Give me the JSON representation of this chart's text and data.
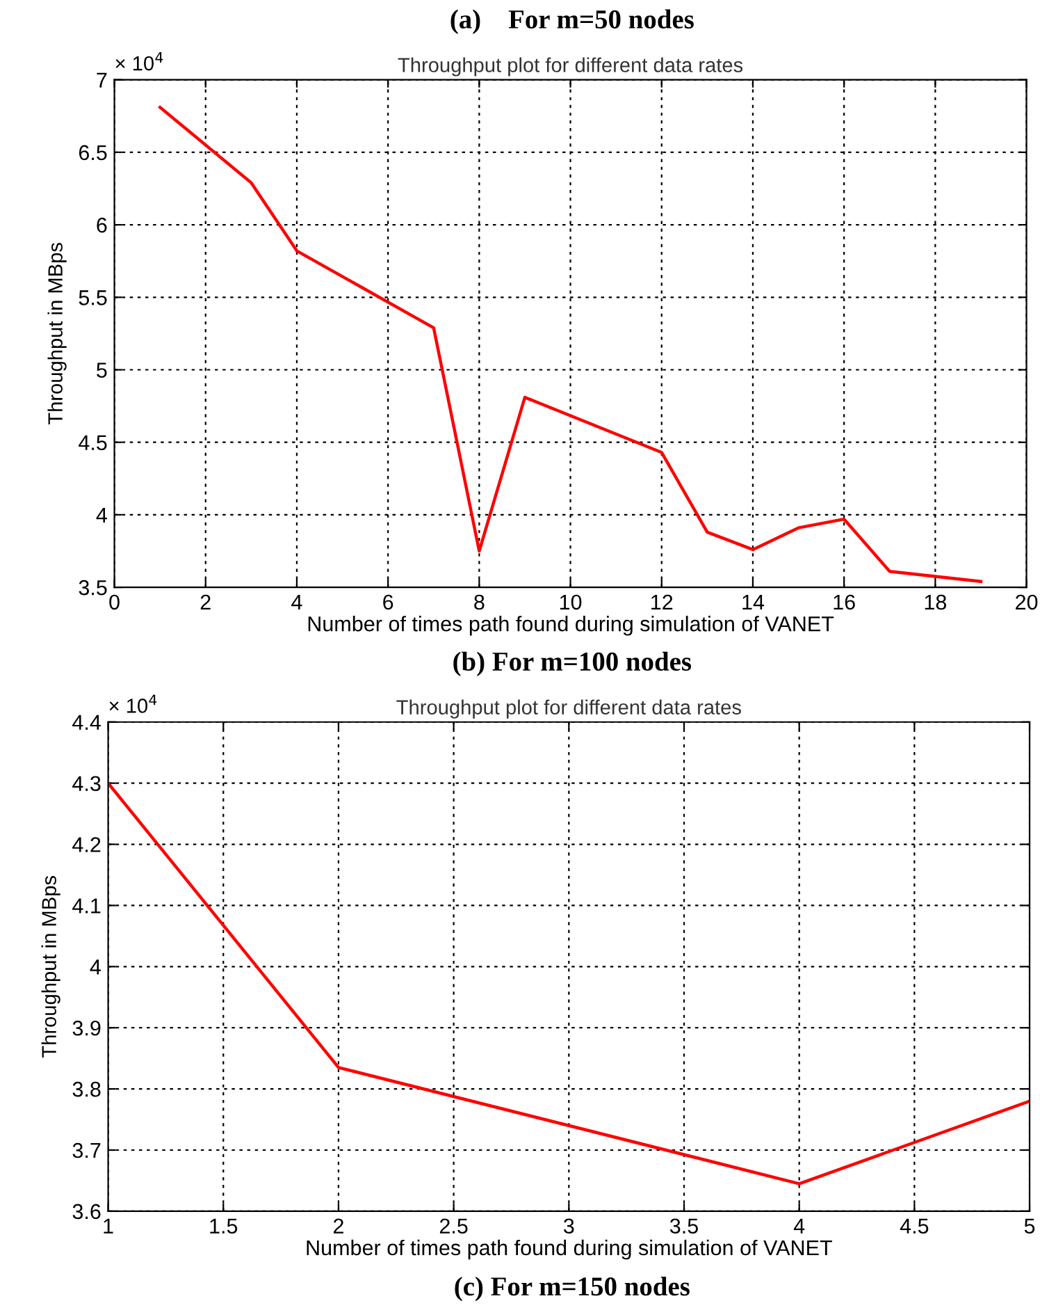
{
  "chart_data": [
    {
      "type": "line",
      "title": "Throughput plot for different data rates",
      "xlabel": "Number of times path found during simulation of VANET",
      "ylabel": "Throughput in MBps",
      "annotations": [
        "(a)    For m=50 nodes",
        "× 10$^{4}$"
      ],
      "x": [
        1,
        3,
        4,
        7,
        8,
        9,
        12,
        13,
        14,
        15,
        16,
        17,
        19
      ],
      "series": [
        {
          "color": "#ff0000",
          "values": [
            6.81,
            6.29,
            5.82,
            5.29,
            3.75,
            4.81,
            4.43,
            3.88,
            3.76,
            3.91,
            3.97,
            3.61,
            3.54
          ]
        }
      ],
      "xlim": [
        0,
        20
      ],
      "xticks": [
        0,
        2,
        4,
        6,
        8,
        10,
        12,
        14,
        16,
        18,
        20
      ],
      "ylim": [
        3.5,
        7
      ],
      "yticks": [
        3.5,
        4,
        4.5,
        5,
        5.5,
        6,
        6.5,
        7
      ],
      "grid": true,
      "legend": false,
      "marker": "none",
      "line_style": "solid"
    },
    {
      "type": "line",
      "title": "Throughput plot for different data rates",
      "xlabel": "Number of times path found during simulation of VANET",
      "ylabel": "Throughput in MBps",
      "annotations": [
        "(b) For m=100 nodes",
        "× 10$^{4}$",
        "(c) For m=150 nodes"
      ],
      "x": [
        1,
        2,
        4,
        5
      ],
      "series": [
        {
          "color": "#ff0000",
          "values": [
            4.3,
            3.835,
            3.645,
            3.78
          ]
        }
      ],
      "xlim": [
        1,
        5
      ],
      "xticks": [
        1,
        1.5,
        2,
        2.5,
        3,
        3.5,
        4,
        4.5,
        5
      ],
      "ylim": [
        3.6,
        4.4
      ],
      "yticks": [
        3.6,
        3.7,
        3.8,
        3.9,
        4,
        4.1,
        4.2,
        4.3,
        4.4
      ],
      "grid": true,
      "legend": false,
      "marker": "none",
      "line_style": "solid"
    }
  ]
}
